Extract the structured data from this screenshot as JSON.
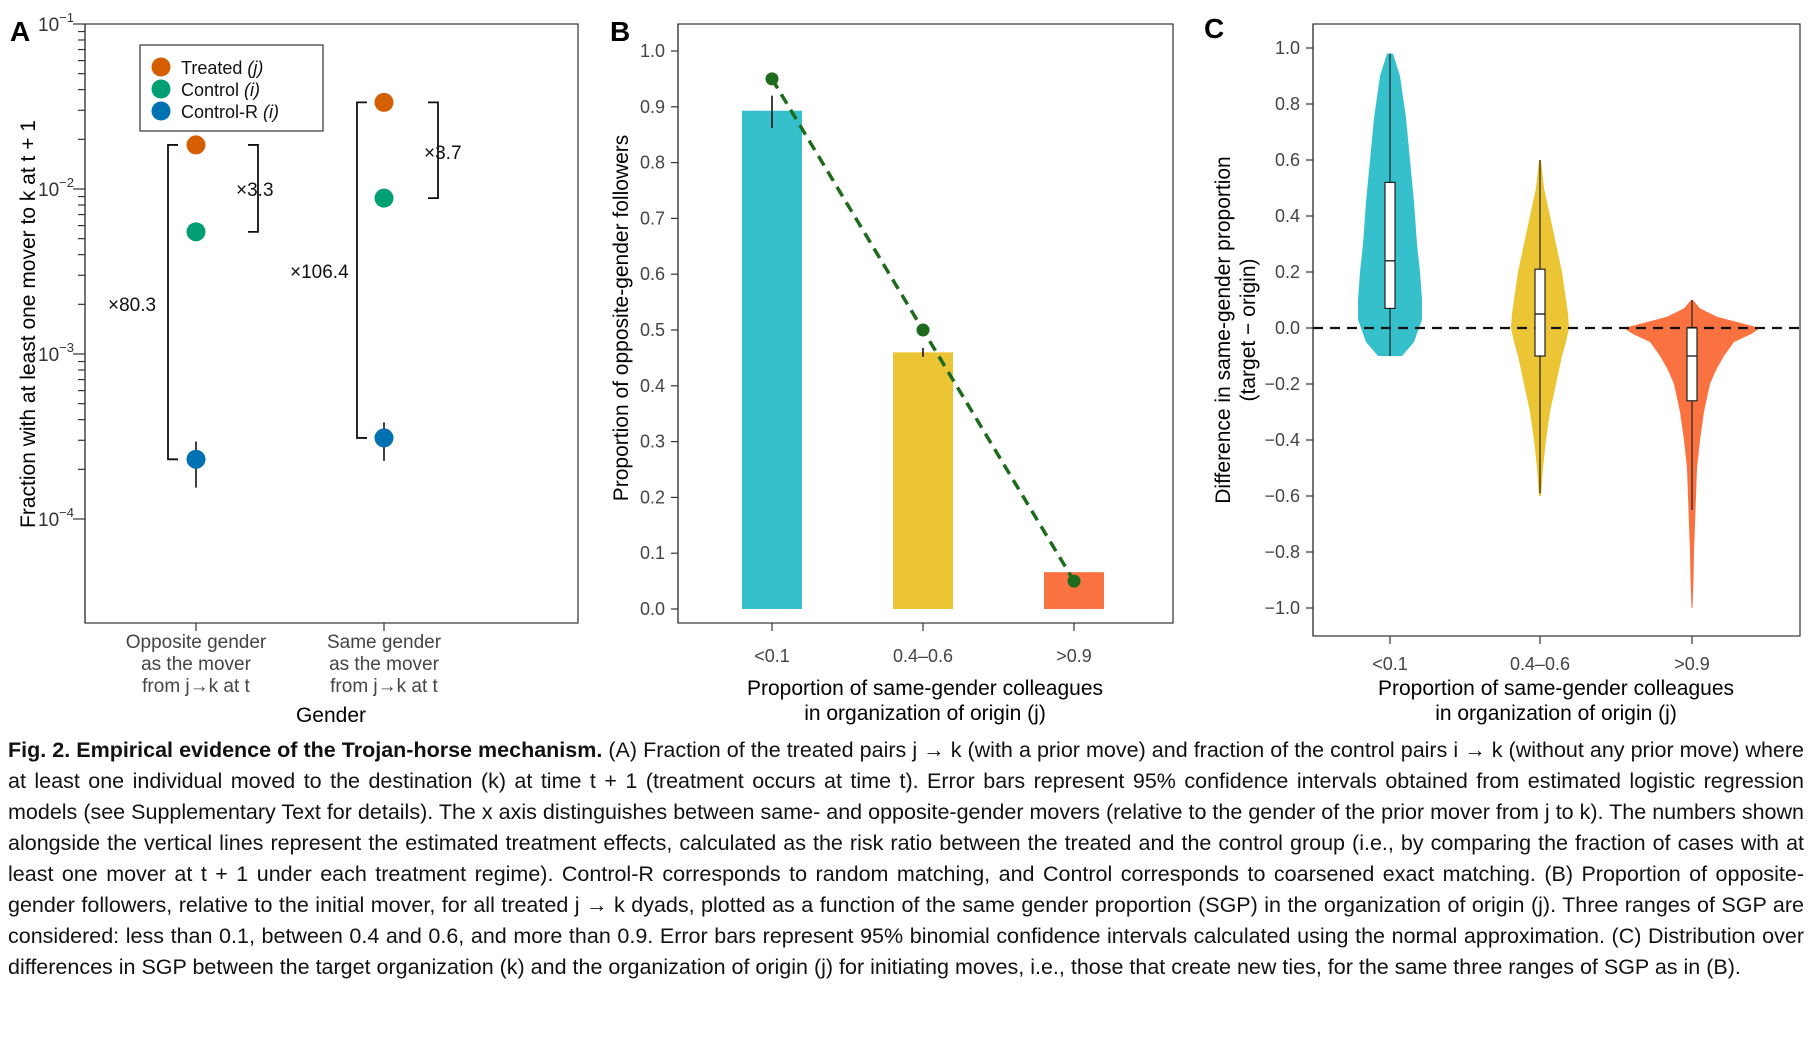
{
  "panelA": {
    "letter": "A",
    "ylabel": "Fraction with at least one mover to k at t + 1",
    "xlabel": "Gender",
    "categories": [
      [
        "Opposite gender",
        "as the mover",
        "from j→k at t"
      ],
      [
        "Same gender",
        "as the mover",
        "from j→k at t"
      ]
    ],
    "yticks": [
      {
        "base": "10",
        "exp": "−1",
        "value": 0.1
      },
      {
        "base": "10",
        "exp": "−2",
        "value": 0.01
      },
      {
        "base": "10",
        "exp": "−3",
        "value": 0.001
      },
      {
        "base": "10",
        "exp": "−4",
        "value": 0.0001
      }
    ],
    "legend": [
      {
        "label": "Treated",
        "sub": "(j)",
        "color": "#D55E00"
      },
      {
        "label": "Control",
        "sub": "(i)",
        "color": "#009E73"
      },
      {
        "label": "Control-R",
        "sub": "(i)",
        "color": "#0072B2"
      }
    ],
    "annotations": {
      "opp_ratio_treated": "×3.3",
      "opp_ratio_random": "×80.3",
      "same_ratio_treated": "×3.7",
      "same_ratio_random": "×106.4"
    }
  },
  "panelB": {
    "letter": "B",
    "ylabel": "Proportion of opposite-gender followers",
    "xlabel_line1": "Proportion of same-gender colleagues",
    "xlabel_line2": "in organization of origin (j)",
    "yticks": [
      "0.0",
      "0.1",
      "0.2",
      "0.3",
      "0.4",
      "0.5",
      "0.6",
      "0.7",
      "0.8",
      "0.9",
      "1.0"
    ]
  },
  "panelC": {
    "letter": "C",
    "ylabel_line1": "Difference in same-gender proportion",
    "ylabel_line2": "(target − origin)",
    "xlabel_line1": "Proportion of same-gender colleagues",
    "xlabel_line2": "in organization of origin (j)",
    "yticks": [
      "−1.0",
      "−0.8",
      "−0.6",
      "−0.4",
      "−0.2",
      "0.0",
      "0.2",
      "0.4",
      "0.6",
      "0.8",
      "1.0"
    ]
  },
  "chart_data": [
    {
      "panel": "A",
      "type": "scatter",
      "yscale": "log",
      "ylim": [
        0.0001,
        0.1
      ],
      "title": "",
      "xlabel": "Gender",
      "ylabel": "Fraction with at least one mover to k at t + 1",
      "categories": [
        "Opposite gender as the mover from j→k at t",
        "Same gender as the mover from j→k at t"
      ],
      "series": [
        {
          "name": "Treated (j)",
          "values": [
            0.0185,
            0.0335
          ],
          "ci_low": [
            null,
            null
          ],
          "ci_high": [
            null,
            null
          ]
        },
        {
          "name": "Control (i)",
          "values": [
            0.0055,
            0.0088
          ],
          "ci_low": [
            null,
            null
          ],
          "ci_high": [
            null,
            null
          ]
        },
        {
          "name": "Control-R (i)",
          "values": [
            0.00023,
            0.00031
          ],
          "ci_low": [
            0.000155,
            0.000225
          ],
          "ci_high": [
            0.000295,
            0.000385
          ]
        }
      ],
      "ratios": [
        {
          "category": 0,
          "comparison": "Treated vs Control",
          "label": "×3.3"
        },
        {
          "category": 0,
          "comparison": "Treated vs Control-R",
          "label": "×80.3"
        },
        {
          "category": 1,
          "comparison": "Treated vs Control",
          "label": "×3.7"
        },
        {
          "category": 1,
          "comparison": "Treated vs Control-R",
          "label": "×106.4"
        }
      ],
      "legend_position": "top-left",
      "grid": false
    },
    {
      "panel": "B",
      "type": "bar",
      "categories": [
        "<0.1",
        "0.4–0.6",
        ">0.9"
      ],
      "values": [
        0.893,
        0.46,
        0.066
      ],
      "bar_colors": [
        "#35C0CB",
        "#EBC534",
        "#FA7240"
      ],
      "error_low": [
        0.862,
        0.452,
        null
      ],
      "error_high": [
        0.92,
        0.468,
        null
      ],
      "line_values": [
        0.95,
        0.5,
        0.05
      ],
      "line_color": "#1E6B1E",
      "ylim": [
        0,
        1
      ],
      "title": "",
      "xlabel": "Proportion of same-gender colleagues in organization of origin (j)",
      "ylabel": "Proportion of opposite-gender followers",
      "grid": false
    },
    {
      "panel": "C",
      "type": "violin",
      "categories": [
        "<0.1",
        "0.4–0.6",
        ">0.9"
      ],
      "colors": [
        "#35C0CB",
        "#EBC534",
        "#FA7240"
      ],
      "ylim": [
        -1,
        1
      ],
      "reference_line": 0,
      "box": [
        {
          "min": -0.1,
          "q1": 0.07,
          "median": 0.24,
          "q3": 0.52,
          "max": 0.98
        },
        {
          "min": -0.59,
          "q1": -0.1,
          "median": 0.05,
          "q3": 0.21,
          "max": 0.6
        },
        {
          "min": -0.65,
          "q1": -0.26,
          "median": -0.1,
          "q3": 0.0,
          "max": 0.1
        }
      ],
      "density_extent": [
        {
          "min": -0.1,
          "max": 0.98
        },
        {
          "min": -0.6,
          "max": 0.6
        },
        {
          "min": -1.0,
          "max": 0.1
        }
      ],
      "title": "",
      "xlabel": "Proportion of same-gender colleagues in organization of origin (j)",
      "ylabel": "Difference in same-gender proportion (target − origin)",
      "grid": false
    }
  ],
  "caption": {
    "title": "Fig. 2. Empirical evidence of the Trojan-horse mechanism.",
    "text": "(A) Fraction of the treated pairs j → k (with a prior move) and fraction of the control pairs i → k (without any prior move) where at least one individual moved to the destination (k) at time t + 1 (treatment occurs at time t). Error bars represent 95% confidence intervals obtained from estimated logistic regression models (see Supplementary Text for details). The x axis distinguishes between same- and opposite-gender movers (relative to the gender of the prior mover from j to k). The numbers shown alongside the vertical lines represent the estimated treatment effects, calculated as the risk ratio between the treated and the control group (i.e., by comparing the fraction of cases with at least one mover at t + 1 under each treatment regime). Control-R corresponds to random matching, and Control corresponds to coarsened exact matching. (B) Proportion of opposite-gender followers, relative to the initial mover, for all treated j → k dyads, plotted as a function of the same gender proportion (SGP) in the organization of origin (j). Three ranges of SGP are considered: less than 0.1, between 0.4 and 0.6, and more than 0.9. Error bars represent 95% binomial confidence intervals calculated using the normal approximation. (C) Distribution over differences in SGP between the target organization (k) and the organization of origin (j) for initiating moves, i.e., those that create new ties, for the same three ranges of SGP as in (B)."
  }
}
